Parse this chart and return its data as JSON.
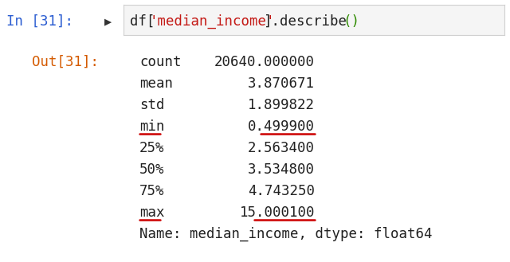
{
  "bg_color": "#ffffff",
  "cell_bg": "#f5f5f5",
  "input_prompt": "In [31]:",
  "output_prompt": "Out[31]:",
  "stats": [
    [
      "count",
      "20640.000000"
    ],
    [
      "mean",
      "3.870671"
    ],
    [
      "std",
      "1.899822"
    ],
    [
      "min",
      "0.499900"
    ],
    [
      "25%",
      "2.563400"
    ],
    [
      "50%",
      "3.534800"
    ],
    [
      "75%",
      "4.743250"
    ],
    [
      "max",
      "15.000100"
    ]
  ],
  "footer": "Name: median_income, dtype: float64",
  "underline_rows": [
    3,
    7
  ],
  "color_in_prompt": "#2b5dd1",
  "color_out_prompt": "#d45a00",
  "color_code_normal": "#212121",
  "color_code_string": "#c41a16",
  "color_code_paren": "#2e8b00",
  "color_stat_label": "#212121",
  "color_stat_value": "#212121",
  "color_footer": "#212121",
  "color_underline": "#cc0000",
  "cell_border_color": "#d0d0d0",
  "run_arrow_color": "#333333"
}
